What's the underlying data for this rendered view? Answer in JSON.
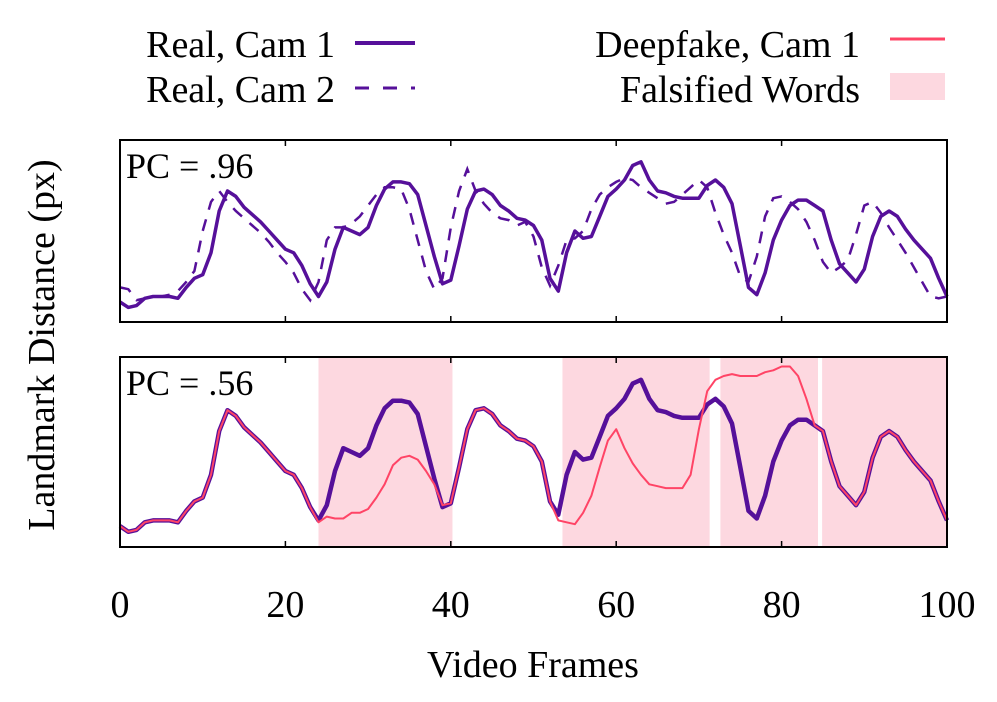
{
  "chart_data": [
    {
      "type": "line",
      "panel": "top",
      "annotation": "PC = .96",
      "x": "frames 0..100 (one value per frame)",
      "xlim": [
        0,
        100
      ],
      "ylim": [
        0,
        1
      ],
      "xlabel": "Video Frames",
      "ylabel": "Landmark Distance (px)",
      "x_ticks": [
        "0",
        "20",
        "40",
        "60",
        "80",
        "100"
      ],
      "grid": false,
      "series": [
        {
          "name": "Real, Cam 1",
          "style": "solid",
          "color": "#56109a",
          "values": [
            0.11,
            0.08,
            0.09,
            0.13,
            0.14,
            0.14,
            0.14,
            0.13,
            0.19,
            0.24,
            0.26,
            0.38,
            0.61,
            0.72,
            0.69,
            0.63,
            0.59,
            0.55,
            0.5,
            0.45,
            0.4,
            0.38,
            0.31,
            0.21,
            0.14,
            0.22,
            0.4,
            0.52,
            0.5,
            0.48,
            0.52,
            0.64,
            0.73,
            0.77,
            0.77,
            0.76,
            0.7,
            0.53,
            0.36,
            0.21,
            0.23,
            0.42,
            0.62,
            0.72,
            0.73,
            0.7,
            0.64,
            0.61,
            0.57,
            0.56,
            0.53,
            0.45,
            0.24,
            0.17,
            0.38,
            0.5,
            0.46,
            0.47,
            0.58,
            0.69,
            0.73,
            0.78,
            0.86,
            0.88,
            0.78,
            0.72,
            0.71,
            0.69,
            0.68,
            0.68,
            0.68,
            0.75,
            0.78,
            0.74,
            0.65,
            0.42,
            0.19,
            0.15,
            0.27,
            0.45,
            0.56,
            0.64,
            0.67,
            0.67,
            0.64,
            0.61,
            0.45,
            0.32,
            0.27,
            0.22,
            0.29,
            0.47,
            0.58,
            0.61,
            0.58,
            0.51,
            0.45,
            0.4,
            0.35,
            0.24,
            0.14
          ]
        },
        {
          "name": "Real, Cam 2",
          "style": "dashed",
          "color": "#56109a",
          "values": [
            0.19,
            0.18,
            0.12,
            0.13,
            0.14,
            0.14,
            0.15,
            0.17,
            0.22,
            0.28,
            0.5,
            0.66,
            0.72,
            0.66,
            0.61,
            0.57,
            0.53,
            0.49,
            0.44,
            0.38,
            0.33,
            0.27,
            0.18,
            0.12,
            0.22,
            0.45,
            0.52,
            0.52,
            0.54,
            0.58,
            0.64,
            0.7,
            0.74,
            0.74,
            0.73,
            0.62,
            0.45,
            0.28,
            0.18,
            0.24,
            0.52,
            0.72,
            0.84,
            0.72,
            0.65,
            0.6,
            0.57,
            0.56,
            0.53,
            0.55,
            0.47,
            0.3,
            0.2,
            0.31,
            0.45,
            0.46,
            0.5,
            0.62,
            0.7,
            0.74,
            0.77,
            0.79,
            0.78,
            0.74,
            0.71,
            0.68,
            0.65,
            0.66,
            0.7,
            0.74,
            0.78,
            0.74,
            0.6,
            0.48,
            0.38,
            0.25,
            0.22,
            0.36,
            0.58,
            0.68,
            0.69,
            0.66,
            0.62,
            0.55,
            0.45,
            0.33,
            0.27,
            0.3,
            0.34,
            0.48,
            0.64,
            0.66,
            0.6,
            0.52,
            0.45,
            0.38,
            0.3,
            0.22,
            0.14,
            0.13,
            0.14
          ]
        }
      ]
    },
    {
      "type": "line",
      "panel": "bottom",
      "annotation": "PC = .56",
      "xlim": [
        0,
        100
      ],
      "ylim": [
        0,
        1
      ],
      "falsified_ranges": [
        [
          24,
          40.2
        ],
        [
          53.5,
          71.3
        ],
        [
          72.6,
          84.4
        ],
        [
          84.9,
          100
        ]
      ],
      "series": [
        {
          "name": "Real, Cam 1",
          "style": "solid",
          "color": "#56109a",
          "same_as": "top Real, Cam 1"
        },
        {
          "name": "Deepfake, Cam 1",
          "style": "solid",
          "color": "#ff4466",
          "values": [
            0.11,
            0.08,
            0.09,
            0.13,
            0.14,
            0.14,
            0.14,
            0.13,
            0.19,
            0.24,
            0.26,
            0.38,
            0.61,
            0.72,
            0.69,
            0.63,
            0.59,
            0.55,
            0.5,
            0.45,
            0.4,
            0.38,
            0.31,
            0.21,
            0.13,
            0.16,
            0.15,
            0.15,
            0.18,
            0.18,
            0.2,
            0.26,
            0.33,
            0.43,
            0.47,
            0.48,
            0.46,
            0.4,
            0.33,
            0.22,
            0.23,
            0.42,
            0.62,
            0.72,
            0.73,
            0.7,
            0.64,
            0.61,
            0.57,
            0.56,
            0.53,
            0.45,
            0.24,
            0.14,
            0.13,
            0.12,
            0.18,
            0.27,
            0.42,
            0.56,
            0.62,
            0.52,
            0.44,
            0.38,
            0.33,
            0.32,
            0.31,
            0.31,
            0.31,
            0.38,
            0.62,
            0.82,
            0.88,
            0.9,
            0.91,
            0.9,
            0.9,
            0.9,
            0.92,
            0.93,
            0.95,
            0.95,
            0.9,
            0.78,
            0.64,
            0.61,
            0.45,
            0.32,
            0.27,
            0.22,
            0.29,
            0.47,
            0.58,
            0.61,
            0.58,
            0.51,
            0.45,
            0.4,
            0.35,
            0.24,
            0.14
          ]
        }
      ]
    }
  ],
  "legend": {
    "items": [
      {
        "label": "Real, Cam 1",
        "kind": "solid-line"
      },
      {
        "label": "Real, Cam 2",
        "kind": "dashed-line"
      },
      {
        "label": "Deepfake, Cam 1",
        "kind": "thin-line"
      },
      {
        "label": "Falsified Words",
        "kind": "box"
      }
    ]
  },
  "colors": {
    "real": "#56109a",
    "deepfake": "#ff4466",
    "falsified": "#fdd8e0"
  }
}
